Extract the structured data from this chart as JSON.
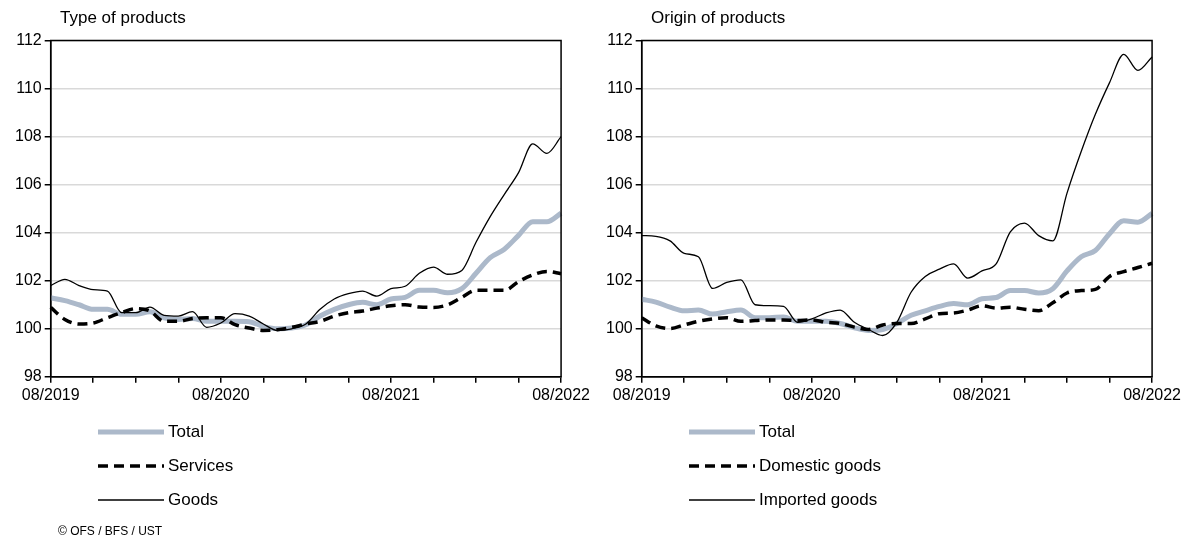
{
  "chart_data": [
    {
      "type": "line",
      "title": "Type of products",
      "categories": [
        "08/2019",
        null,
        null,
        null,
        null,
        null,
        null,
        null,
        null,
        null,
        null,
        null,
        "08/2020",
        null,
        null,
        null,
        null,
        null,
        null,
        null,
        null,
        null,
        null,
        null,
        "08/2021",
        null,
        null,
        null,
        null,
        null,
        null,
        null,
        null,
        null,
        null,
        null,
        "08/2022"
      ],
      "series": [
        {
          "name": "Total",
          "color": "#acb9ca",
          "line_style": "solid",
          "values": [
            101.29,
            101.17,
            101.0,
            100.81,
            100.81,
            100.6,
            100.6,
            100.71,
            100.46,
            100.39,
            100.43,
            100.31,
            100.31,
            100.31,
            100.29,
            100.1,
            100.0,
            100.03,
            100.17,
            100.53,
            100.81,
            101.0,
            101.1,
            101.0,
            101.24,
            101.31,
            101.6,
            101.6,
            101.5,
            101.67,
            102.31,
            102.96,
            103.31,
            103.89,
            104.46,
            104.46,
            104.81
          ]
        },
        {
          "name": "Services",
          "color": "#000000",
          "line_style": "dashed",
          "values": [
            100.89,
            100.39,
            100.2,
            100.24,
            100.46,
            100.67,
            100.84,
            100.74,
            100.31,
            100.31,
            100.43,
            100.46,
            100.46,
            100.17,
            100.03,
            99.93,
            99.96,
            100.06,
            100.2,
            100.31,
            100.53,
            100.67,
            100.74,
            100.86,
            100.96,
            101.0,
            100.91,
            100.89,
            101.0,
            101.31,
            101.6,
            101.6,
            101.6,
            101.96,
            102.24,
            102.39,
            102.29
          ]
        },
        {
          "name": "Goods",
          "color": "#000000",
          "line_style": "solid",
          "values": [
            101.8,
            102.06,
            101.8,
            101.63,
            101.57,
            100.67,
            100.67,
            100.9,
            100.56,
            100.53,
            100.71,
            100.06,
            100.24,
            100.63,
            100.53,
            100.2,
            99.93,
            100.0,
            100.2,
            100.81,
            101.24,
            101.46,
            101.57,
            101.36,
            101.67,
            101.77,
            102.31,
            102.57,
            102.27,
            102.43,
            103.6,
            104.67,
            105.6,
            106.5,
            107.7,
            107.3,
            108.0
          ]
        }
      ],
      "ylim": [
        98,
        112
      ],
      "yticks": [
        98,
        100,
        102,
        104,
        106,
        108,
        110,
        112
      ],
      "grid": "y",
      "legend": "bottom",
      "marker": "none",
      "annotations": [
        "© OFS / BFS / UST"
      ]
    },
    {
      "type": "line",
      "title": "Origin of products",
      "categories": [
        "08/2019",
        null,
        null,
        null,
        null,
        null,
        null,
        null,
        null,
        null,
        null,
        null,
        "08/2020",
        null,
        null,
        null,
        null,
        null,
        null,
        null,
        null,
        null,
        null,
        null,
        "08/2021",
        null,
        null,
        null,
        null,
        null,
        null,
        null,
        null,
        null,
        null,
        null,
        "08/2022"
      ],
      "series": [
        {
          "name": "Total",
          "color": "#acb9ca",
          "line_style": "solid",
          "values": [
            101.23,
            101.11,
            100.9,
            100.75,
            100.78,
            100.61,
            100.71,
            100.78,
            100.46,
            100.46,
            100.49,
            100.31,
            100.31,
            100.31,
            100.22,
            100.04,
            99.93,
            99.97,
            100.22,
            100.56,
            100.75,
            100.93,
            101.05,
            101.0,
            101.25,
            101.3,
            101.59,
            101.59,
            101.49,
            101.67,
            102.41,
            103.0,
            103.26,
            103.96,
            104.5,
            104.44,
            104.8
          ]
        },
        {
          "name": "Domestic goods",
          "color": "#000000",
          "line_style": "dashed",
          "values": [
            100.46,
            100.12,
            100.01,
            100.16,
            100.31,
            100.41,
            100.46,
            100.31,
            100.34,
            100.37,
            100.37,
            100.34,
            100.37,
            100.27,
            100.22,
            100.07,
            99.97,
            100.16,
            100.22,
            100.22,
            100.41,
            100.63,
            100.66,
            100.78,
            100.96,
            100.86,
            100.9,
            100.81,
            100.75,
            101.08,
            101.49,
            101.59,
            101.64,
            102.18,
            102.38,
            102.55,
            102.73
          ]
        },
        {
          "name": "Imported goods",
          "color": "#000000",
          "line_style": "solid",
          "values": [
            103.88,
            103.85,
            103.66,
            103.14,
            103.0,
            101.68,
            101.93,
            102.04,
            101.0,
            100.96,
            100.93,
            100.27,
            100.41,
            100.66,
            100.78,
            100.27,
            99.97,
            99.72,
            100.27,
            101.52,
            102.18,
            102.48,
            102.7,
            102.11,
            102.41,
            102.7,
            104.03,
            104.4,
            103.88,
            103.66,
            105.65,
            107.38,
            108.93,
            110.25,
            111.43,
            110.76,
            111.32
          ]
        }
      ],
      "ylim": [
        98,
        112
      ],
      "yticks": [
        98,
        100,
        102,
        104,
        106,
        108,
        110,
        112
      ],
      "grid": "y",
      "legend": "bottom",
      "marker": "none"
    }
  ]
}
